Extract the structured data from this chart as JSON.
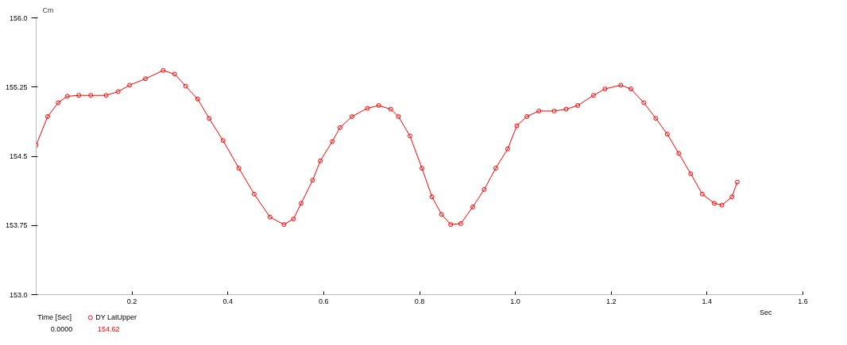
{
  "chart_data": {
    "type": "line",
    "ylabel": "Cm",
    "xlabel": "Sec",
    "x": [
      0,
      0.024,
      0.046,
      0.065,
      0.089,
      0.114,
      0.146,
      0.171,
      0.195,
      0.228,
      0.265,
      0.289,
      0.312,
      0.337,
      0.361,
      0.39,
      0.423,
      0.455,
      0.488,
      0.517,
      0.537,
      0.553,
      0.577,
      0.593,
      0.618,
      0.634,
      0.659,
      0.691,
      0.715,
      0.74,
      0.756,
      0.78,
      0.805,
      0.826,
      0.846,
      0.865,
      0.886,
      0.911,
      0.935,
      0.959,
      0.984,
      1.003,
      1.024,
      1.049,
      1.081,
      1.106,
      1.13,
      1.163,
      1.187,
      1.22,
      1.241,
      1.268,
      1.293,
      1.317,
      1.341,
      1.366,
      1.39,
      1.415,
      1.431,
      1.452,
      1.463
    ],
    "series": [
      {
        "name": "DY LatUpper",
        "color": "#ff0000",
        "values": [
          154.62,
          154.93,
          155.08,
          155.15,
          155.16,
          155.16,
          155.16,
          155.2,
          155.27,
          155.34,
          155.43,
          155.39,
          155.26,
          155.12,
          154.91,
          154.67,
          154.37,
          154.09,
          153.84,
          153.76,
          153.82,
          153.99,
          154.24,
          154.45,
          154.66,
          154.81,
          154.93,
          155.02,
          155.05,
          155.01,
          154.93,
          154.72,
          154.37,
          154.06,
          153.87,
          153.76,
          153.77,
          153.95,
          154.14,
          154.37,
          154.58,
          154.83,
          154.93,
          154.99,
          154.99,
          155.01,
          155.05,
          155.16,
          155.23,
          155.27,
          155.23,
          155.08,
          154.91,
          154.74,
          154.53,
          154.31,
          154.09,
          153.99,
          153.97,
          154.06,
          154.22
        ]
      }
    ],
    "xlim": [
      0,
      1.6
    ],
    "ylim": [
      153,
      156
    ],
    "xticks": [
      0.2,
      0.4,
      {
        "value": 0.6,
        "label": "0.6"
      },
      0.8,
      {
        "value": 1.0,
        "label": "1.0"
      },
      1.2,
      1.4,
      1.6
    ],
    "yticks": [
      {
        "value": 156.0,
        "label": "156.0"
      },
      155.25,
      154.5,
      153.75,
      {
        "value": 153.0,
        "label": "153.0"
      }
    ],
    "grid": false,
    "legend": "bottom left",
    "marker": "circle",
    "line_style": "solid",
    "annotations": [
      "Time [Sec]",
      "0.0000",
      "154.62"
    ]
  }
}
